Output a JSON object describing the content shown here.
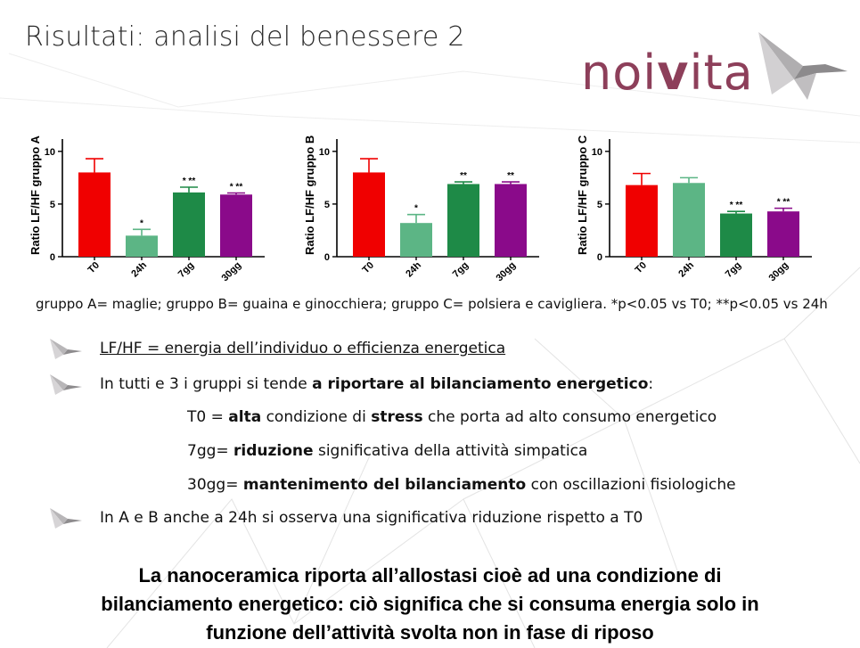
{
  "slide": {
    "title": "Risultati: analisi del benessere 2",
    "logo_text_prefix": "noi",
    "logo_text_suffix": "ita",
    "logo_v": "v"
  },
  "colors": {
    "red": "#f00000",
    "light_green": "#5cb585",
    "dark_green": "#1e8a47",
    "purple": "#8a0a8a",
    "logo_mauve": "#8d3f5a"
  },
  "chart_data": [
    {
      "type": "bar",
      "ylabel": "Ratio LF/HF gruppo A",
      "categories": [
        "T0",
        "24h",
        "7gg",
        "30gg"
      ],
      "values": [
        8.0,
        2.0,
        6.1,
        5.9
      ],
      "errors": [
        1.3,
        0.6,
        0.5,
        0.15
      ],
      "annotations": [
        "",
        "*",
        "* **",
        "* **"
      ],
      "bar_colors": [
        "#f00000",
        "#5cb585",
        "#1e8a47",
        "#8a0a8a"
      ],
      "ylim": [
        0,
        11
      ],
      "yticks": [
        "0",
        "5",
        "10"
      ]
    },
    {
      "type": "bar",
      "ylabel": "Ratio LF/HF gruppo B",
      "categories": [
        "T0",
        "24h",
        "7gg",
        "30gg"
      ],
      "values": [
        8.0,
        3.2,
        6.9,
        6.9
      ],
      "errors": [
        1.3,
        0.8,
        0.2,
        0.2
      ],
      "annotations": [
        "",
        "*",
        "**",
        "**"
      ],
      "bar_colors": [
        "#f00000",
        "#5cb585",
        "#1e8a47",
        "#8a0a8a"
      ],
      "ylim": [
        0,
        11
      ],
      "yticks": [
        "0",
        "5",
        "10"
      ]
    },
    {
      "type": "bar",
      "ylabel": "Ratio LF/HF gruppo C",
      "categories": [
        "T0",
        "24h",
        "7gg",
        "30gg"
      ],
      "values": [
        6.8,
        7.0,
        4.1,
        4.3
      ],
      "errors": [
        1.1,
        0.5,
        0.2,
        0.3
      ],
      "annotations": [
        "",
        "",
        "* **",
        "* **"
      ],
      "bar_colors": [
        "#f00000",
        "#5cb585",
        "#1e8a47",
        "#8a0a8a"
      ],
      "ylim": [
        0,
        11
      ],
      "yticks": [
        "0",
        "5",
        "10"
      ]
    }
  ],
  "caption": "gruppo A= maglie; gruppo B= guaina e ginocchiera; gruppo C= polsiera e cavigliera. *p<0.05 vs T0; **p<0.05 vs 24h",
  "bullets": {
    "b1": "LF/HF = energia dell’individuo o efficienza energetica",
    "b2_pre": "In tutti e 3 i gruppi si tende ",
    "b2_bold": "a riportare al bilanciamento energetico",
    "b2_post": ":",
    "s1_a": "T0 = ",
    "s1_b": "alta",
    "s1_c": " condizione di ",
    "s1_d": "stress",
    "s1_e": " che porta ad alto consumo energetico",
    "s2_a": "7gg= ",
    "s2_b": "riduzione",
    "s2_c": " significativa della attività simpatica",
    "s3_a": "30gg= ",
    "s3_b": "mantenimento del bilanciamento",
    "s3_c": " con oscillazioni fisiologiche",
    "b3": "In A e B anche a 24h si osserva una significativa riduzione rispetto a T0"
  },
  "conclusion": {
    "line1": "La nanoceramica riporta all’allostasi cioè ad una condizione di",
    "line2": "bilanciamento energetico: ciò significa che si consuma energia solo in",
    "line3": "funzione dell’attività svolta non in fase di riposo"
  }
}
